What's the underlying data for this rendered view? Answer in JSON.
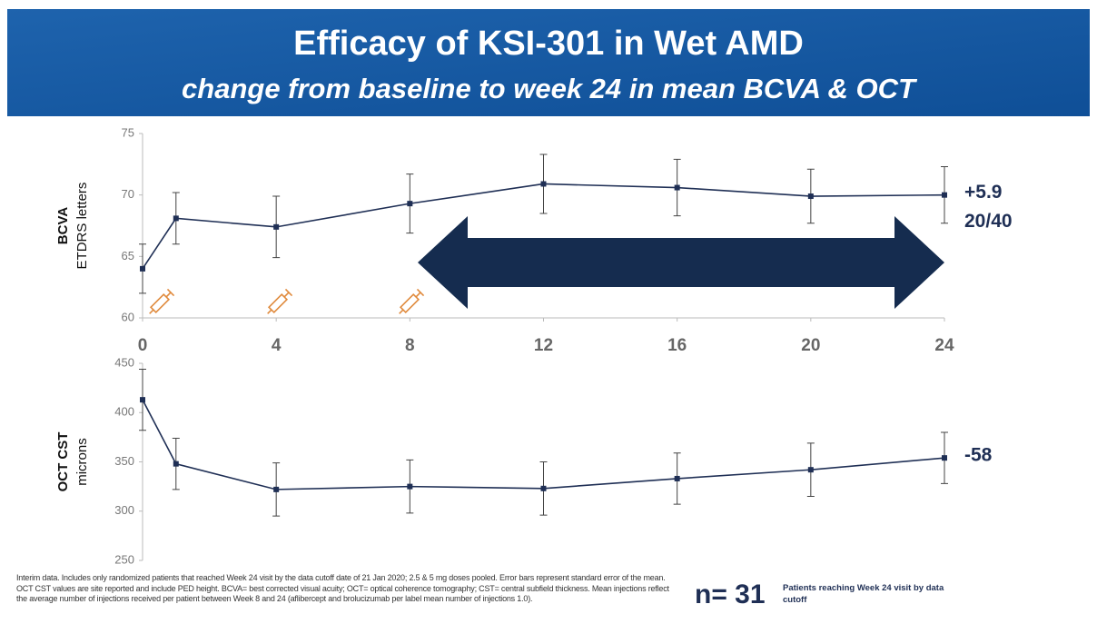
{
  "header": {
    "title": "Efficacy of KSI-301 in Wet AMD",
    "subtitle": "change from baseline to week 24 in mean BCVA & OCT"
  },
  "chart_data": [
    {
      "type": "line",
      "ylabel": "BCVA",
      "ylabel_unit": "ETDRS letters",
      "x": [
        0,
        1,
        4,
        8,
        12,
        16,
        20,
        24
      ],
      "xlim": [
        0,
        24
      ],
      "xticks": [
        0,
        4,
        8,
        12,
        16,
        20,
        24
      ],
      "ylim": [
        60,
        75
      ],
      "yticks": [
        60,
        65,
        70,
        75
      ],
      "series": [
        {
          "color": "#1f2f55",
          "values": [
            64.0,
            68.1,
            67.4,
            69.3,
            70.9,
            70.6,
            69.9,
            70.0
          ],
          "errors": [
            2.0,
            2.1,
            2.5,
            2.4,
            2.4,
            2.3,
            2.2,
            2.3
          ]
        }
      ],
      "annotations": [
        "+5.9",
        "20/40"
      ]
    },
    {
      "type": "line",
      "ylabel": "OCT CST",
      "ylabel_unit": "microns",
      "x": [
        0,
        1,
        4,
        8,
        12,
        16,
        20,
        24
      ],
      "xlim": [
        0,
        24
      ],
      "ylim": [
        250,
        450
      ],
      "yticks": [
        250,
        300,
        350,
        400,
        450
      ],
      "series": [
        {
          "color": "#1f2f55",
          "values": [
            413,
            348,
            322,
            325,
            323,
            333,
            342,
            354
          ],
          "errors": [
            31,
            26,
            27,
            27,
            27,
            26,
            27,
            26
          ]
        }
      ],
      "annotations": [
        "-58"
      ]
    }
  ],
  "footnote": "Interim data. Includes only randomized patients that reached Week 24 visit by the data cutoff date of 21 Jan 2020; 2.5 & 5 mg doses pooled. Error bars represent standard error of the mean. OCT CST values are site reported and include PED height. BCVA= best corrected visual acuity; OCT= optical coherence tomography; CST= central subfield thickness. Mean injections reflect the average number of injections received per patient between Week 8 and 24 (aflibercept and brolucizumab per label mean number of injections 1.0).",
  "n_label": "n= 31",
  "n_note": "Patients reaching Week 24 visit by data cutoff"
}
